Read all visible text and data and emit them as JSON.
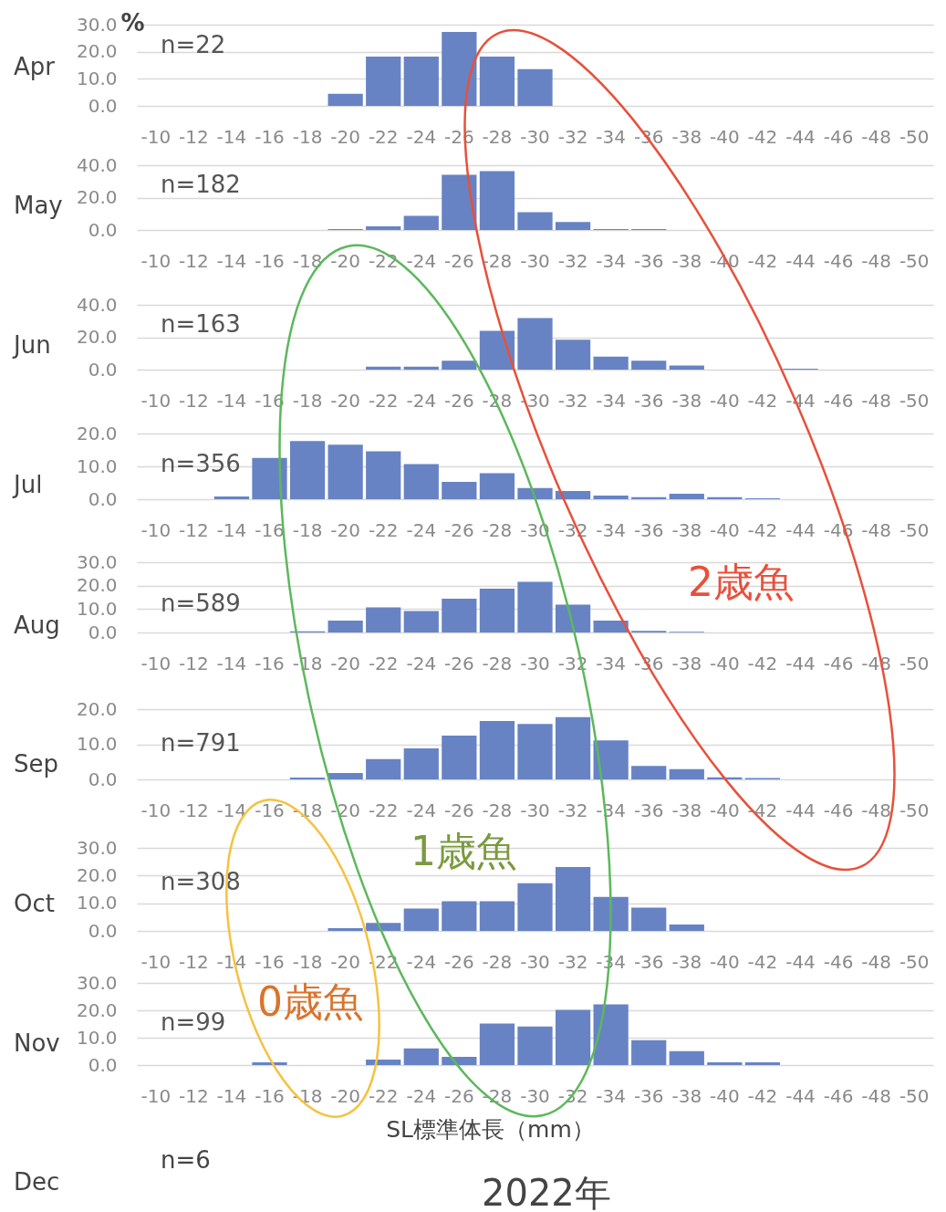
{
  "chart_data": [
    {
      "type": "bar",
      "title": "Apr",
      "ylabel": "%",
      "color": "#6783c4",
      "grid": "y",
      "categories": [
        "-10",
        "-12",
        "-14",
        "-16",
        "-18",
        "-20",
        "-22",
        "-24",
        "-26",
        "-28",
        "-30",
        "-32",
        "-34",
        "-36",
        "-38",
        "-40",
        "-42",
        "-44",
        "-46",
        "-48",
        "-50"
      ],
      "values": [
        null,
        null,
        null,
        null,
        null,
        4.5,
        18.2,
        18.2,
        27.3,
        18.2,
        13.6,
        null,
        null,
        null,
        null,
        null,
        null,
        null,
        null,
        null,
        null
      ],
      "ylim": [
        0,
        30
      ],
      "yticks": [
        {
          "value": 0,
          "label": "0.0"
        },
        {
          "value": 10,
          "label": "10.0"
        },
        {
          "value": 20,
          "label": "20.0"
        },
        {
          "value": 30,
          "label": "30.0"
        }
      ],
      "annotations": [
        "n=22"
      ]
    },
    {
      "type": "bar",
      "title": "May",
      "color": "#6783c4",
      "grid": "y",
      "categories": [
        "-10",
        "-12",
        "-14",
        "-16",
        "-18",
        "-20",
        "-22",
        "-24",
        "-26",
        "-28",
        "-30",
        "-32",
        "-34",
        "-36",
        "-38",
        "-40",
        "-42",
        "-44",
        "-46",
        "-48",
        "-50"
      ],
      "values": [
        null,
        null,
        null,
        null,
        null,
        0.5,
        2.2,
        8.8,
        34.1,
        36.3,
        11.0,
        4.9,
        0.5,
        0.5,
        null,
        null,
        null,
        null,
        null,
        null,
        null
      ],
      "ylim": [
        0,
        40
      ],
      "yticks": [
        {
          "value": 0,
          "label": "0.0"
        },
        {
          "value": 20,
          "label": "20.0"
        },
        {
          "value": 40,
          "label": "40.0"
        }
      ],
      "annotations": [
        "n=182"
      ]
    },
    {
      "type": "bar",
      "title": "Jun",
      "color": "#6783c4",
      "grid": "y",
      "categories": [
        "-10",
        "-12",
        "-14",
        "-16",
        "-18",
        "-20",
        "-22",
        "-24",
        "-26",
        "-28",
        "-30",
        "-32",
        "-34",
        "-36",
        "-38",
        "-40",
        "-42",
        "-44",
        "-46",
        "-48",
        "-50"
      ],
      "values": [
        null,
        null,
        null,
        null,
        null,
        null,
        1.8,
        1.8,
        5.5,
        23.9,
        31.9,
        18.4,
        8.0,
        5.5,
        2.5,
        null,
        null,
        0.6,
        null,
        null,
        null
      ],
      "ylim": [
        0,
        40
      ],
      "yticks": [
        {
          "value": 0,
          "label": "0.0"
        },
        {
          "value": 20,
          "label": "20.0"
        },
        {
          "value": 40,
          "label": "40.0"
        }
      ],
      "annotations": [
        "n=163"
      ]
    },
    {
      "type": "bar",
      "title": "Jul",
      "color": "#6783c4",
      "grid": "y",
      "categories": [
        "-10",
        "-12",
        "-14",
        "-16",
        "-18",
        "-20",
        "-22",
        "-24",
        "-26",
        "-28",
        "-30",
        "-32",
        "-34",
        "-36",
        "-38",
        "-40",
        "-42",
        "-44",
        "-46",
        "-48",
        "-50"
      ],
      "values": [
        null,
        null,
        0.8,
        12.6,
        17.7,
        16.6,
        14.6,
        10.7,
        5.3,
        7.9,
        3.4,
        2.5,
        1.1,
        0.6,
        1.7,
        0.6,
        0.3,
        null,
        null,
        null,
        null
      ],
      "ylim": [
        0,
        20
      ],
      "yticks": [
        {
          "value": 0,
          "label": "0.0"
        },
        {
          "value": 10,
          "label": "10.0"
        },
        {
          "value": 20,
          "label": "20.0"
        }
      ],
      "annotations": [
        "n=356"
      ]
    },
    {
      "type": "bar",
      "title": "Aug",
      "color": "#6783c4",
      "grid": "y",
      "categories": [
        "-10",
        "-12",
        "-14",
        "-16",
        "-18",
        "-20",
        "-22",
        "-24",
        "-26",
        "-28",
        "-30",
        "-32",
        "-34",
        "-36",
        "-38",
        "-40",
        "-42",
        "-44",
        "-46",
        "-48",
        "-50"
      ],
      "values": [
        null,
        null,
        null,
        null,
        0.5,
        5.1,
        10.7,
        9.2,
        14.4,
        18.7,
        21.6,
        11.9,
        5.1,
        0.7,
        0.3,
        null,
        null,
        null,
        null,
        null,
        null
      ],
      "ylim": [
        0,
        30
      ],
      "yticks": [
        {
          "value": 0,
          "label": "0.0"
        },
        {
          "value": 10,
          "label": "10.0"
        },
        {
          "value": 20,
          "label": "20.0"
        },
        {
          "value": 30,
          "label": "30.0"
        }
      ],
      "annotations": [
        "n=589",
        "2歳魚"
      ]
    },
    {
      "type": "bar",
      "title": "Sep",
      "color": "#6783c4",
      "grid": "y",
      "categories": [
        "-10",
        "-12",
        "-14",
        "-16",
        "-18",
        "-20",
        "-22",
        "-24",
        "-26",
        "-28",
        "-30",
        "-32",
        "-34",
        "-36",
        "-38",
        "-40",
        "-42",
        "-44",
        "-46",
        "-48",
        "-50"
      ],
      "values": [
        null,
        null,
        null,
        null,
        0.5,
        1.8,
        5.8,
        8.8,
        12.5,
        16.6,
        15.8,
        17.7,
        11.1,
        3.8,
        2.9,
        0.6,
        0.4,
        null,
        null,
        null,
        null
      ],
      "ylim": [
        0,
        20
      ],
      "yticks": [
        {
          "value": 0,
          "label": "0.0"
        },
        {
          "value": 10,
          "label": "10.0"
        },
        {
          "value": 20,
          "label": "20.0"
        }
      ],
      "annotations": [
        "n=791"
      ]
    },
    {
      "type": "bar",
      "title": "Oct",
      "color": "#6783c4",
      "grid": "y",
      "categories": [
        "-10",
        "-12",
        "-14",
        "-16",
        "-18",
        "-20",
        "-22",
        "-24",
        "-26",
        "-28",
        "-30",
        "-32",
        "-34",
        "-36",
        "-38",
        "-40",
        "-42",
        "-44",
        "-46",
        "-48",
        "-50"
      ],
      "values": [
        null,
        null,
        null,
        null,
        null,
        1.0,
        2.9,
        8.1,
        10.7,
        10.7,
        17.2,
        23.1,
        12.3,
        8.4,
        2.3,
        null,
        null,
        null,
        null,
        null,
        null
      ],
      "ylim": [
        0,
        30
      ],
      "yticks": [
        {
          "value": 0,
          "label": "0.0"
        },
        {
          "value": 10,
          "label": "10.0"
        },
        {
          "value": 20,
          "label": "20.0"
        },
        {
          "value": 30,
          "label": "30.0"
        }
      ],
      "annotations": [
        "n=308",
        "1歳魚"
      ]
    },
    {
      "type": "bar",
      "title": "Nov",
      "xlabel": "SL標準体長（mm）",
      "color": "#6783c4",
      "grid": "y",
      "categories": [
        "-10",
        "-12",
        "-14",
        "-16",
        "-18",
        "-20",
        "-22",
        "-24",
        "-26",
        "-28",
        "-30",
        "-32",
        "-34",
        "-36",
        "-38",
        "-40",
        "-42",
        "-44",
        "-46",
        "-48",
        "-50"
      ],
      "values": [
        null,
        null,
        null,
        1.0,
        null,
        null,
        2.0,
        6.1,
        3.0,
        15.2,
        14.1,
        20.2,
        22.2,
        9.1,
        5.1,
        1.0,
        1.0,
        null,
        null,
        null,
        null
      ],
      "ylim": [
        0,
        30
      ],
      "yticks": [
        {
          "value": 0,
          "label": "0.0"
        },
        {
          "value": 10,
          "label": "10.0"
        },
        {
          "value": 20,
          "label": "20.0"
        },
        {
          "value": 30,
          "label": "30.0"
        }
      ],
      "annotations": [
        "n=99",
        "0歳魚"
      ]
    },
    {
      "type": "other",
      "title": "Dec",
      "annotations": [
        "n=6",
        "2022年"
      ]
    }
  ]
}
